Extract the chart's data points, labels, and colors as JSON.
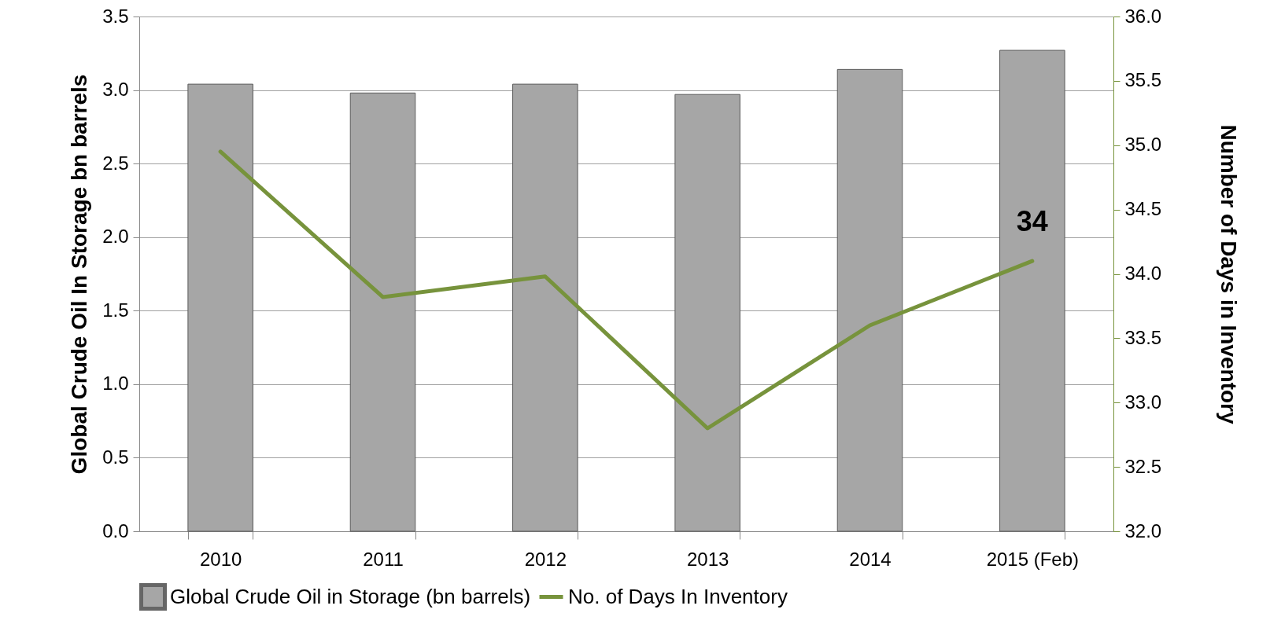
{
  "chart_data": {
    "type": "bar",
    "xlabel": null,
    "ylabel": "Global Crude Oil In Storage bn barrels",
    "y2label": "Number of Days in Inventory",
    "categories": [
      "2010",
      "2011",
      "2012",
      "2013",
      "2014",
      "2015 (Feb)"
    ],
    "series": [
      {
        "name": "Global Crude Oil in Storage (bn barrels)",
        "color": "#a6a6a6",
        "values": [
          3.04,
          2.98,
          3.04,
          2.97,
          3.14,
          3.27
        ]
      },
      {
        "name": "No. of Days In Inventory",
        "type": "line",
        "axis": "y2",
        "color": "#77933c",
        "values": [
          34.95,
          33.82,
          33.98,
          32.8,
          33.6,
          34.1
        ]
      }
    ],
    "ylim": [
      0,
      3.5
    ],
    "yticks": [
      {
        "value": 0,
        "label": "0.0"
      },
      0.5,
      {
        "value": 1,
        "label": "1.0"
      },
      1.5,
      {
        "value": 2,
        "label": "2.0"
      },
      2.5,
      {
        "value": 3,
        "label": "3.0"
      },
      3.5
    ],
    "y2lim": [
      32,
      36
    ],
    "y2ticks": [
      {
        "value": 32,
        "label": "32.0"
      },
      32.5,
      {
        "value": 33,
        "label": "33.0"
      },
      33.5,
      {
        "value": 34,
        "label": "34.0"
      },
      34.5,
      {
        "value": 35,
        "label": "35.0"
      },
      35.5,
      {
        "value": 36,
        "label": "36.0"
      }
    ],
    "annotations": [
      "34"
    ],
    "grid": "y",
    "legend": "bottom"
  }
}
